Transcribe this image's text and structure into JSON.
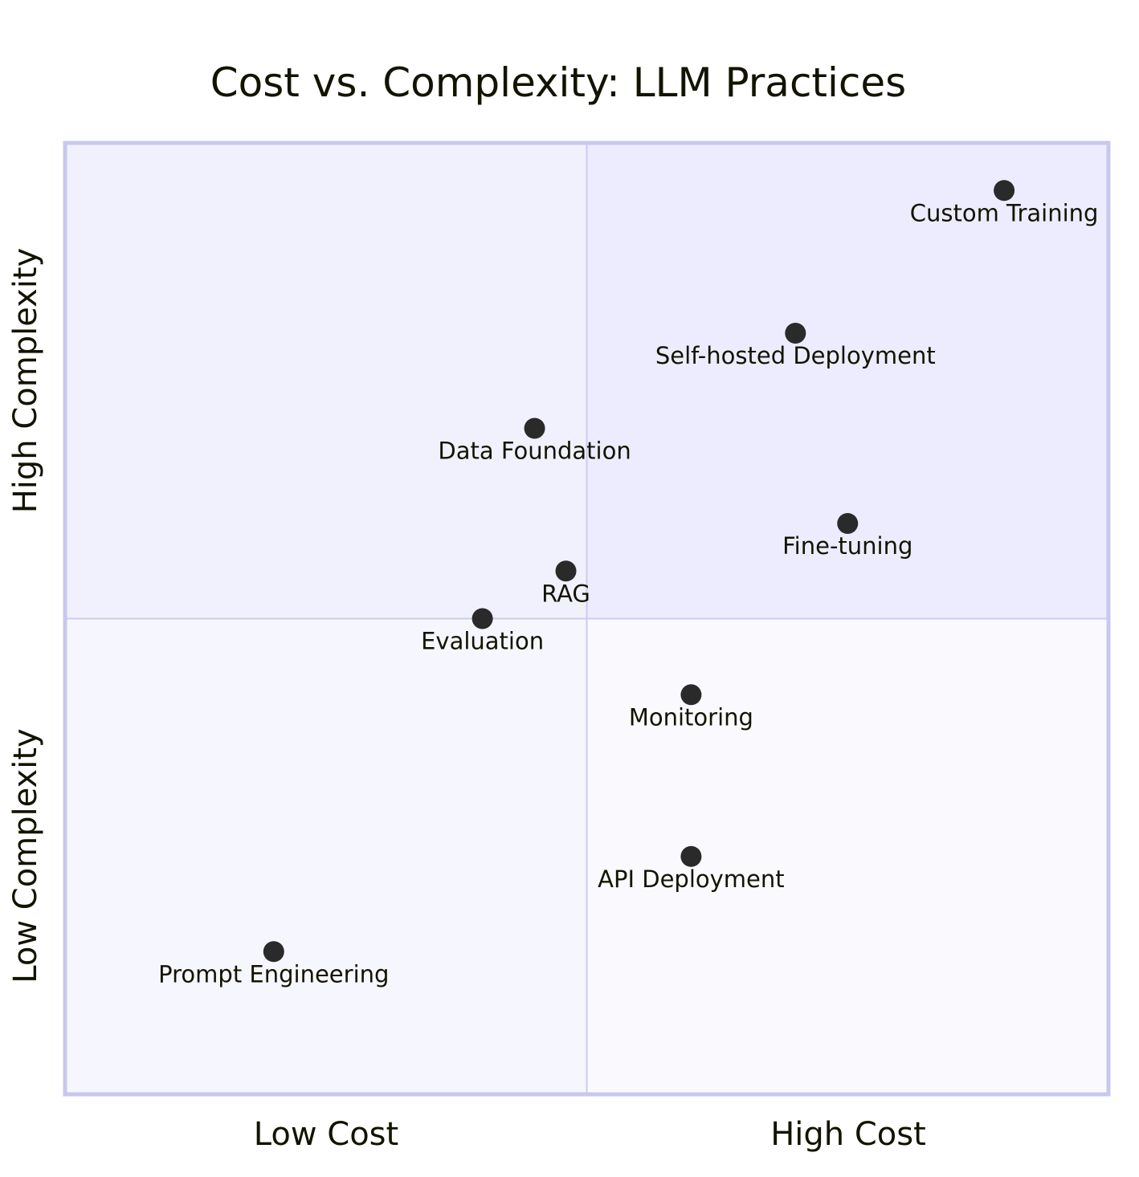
{
  "chart_data": {
    "type": "scatter",
    "subtype": "quadrant",
    "title": "Cost vs. Complexity: LLM Practices",
    "x_axis": {
      "low_label": "Low Cost",
      "high_label": "High Cost",
      "range": [
        0,
        1
      ]
    },
    "y_axis": {
      "low_label": "Low Complexity",
      "high_label": "High Complexity",
      "range": [
        0,
        1
      ]
    },
    "quadrant_colors": {
      "top_right": "#ececfe",
      "top_left": "#f1f1fe",
      "bottom_left": "#f6f6fe",
      "bottom_right": "#fafafe",
      "border": "#c8c8ee",
      "divider": "#cbcbf1",
      "point": "#2a2a2a"
    },
    "points": [
      {
        "name": "Custom Training",
        "x": 0.9,
        "y": 0.95
      },
      {
        "name": "Self-hosted Deployment",
        "x": 0.7,
        "y": 0.8
      },
      {
        "name": "Data Foundation",
        "x": 0.45,
        "y": 0.7
      },
      {
        "name": "Fine-tuning",
        "x": 0.75,
        "y": 0.6
      },
      {
        "name": "RAG",
        "x": 0.48,
        "y": 0.55
      },
      {
        "name": "Evaluation",
        "x": 0.4,
        "y": 0.5
      },
      {
        "name": "Monitoring",
        "x": 0.6,
        "y": 0.42
      },
      {
        "name": "API Deployment",
        "x": 0.6,
        "y": 0.25
      },
      {
        "name": "Prompt Engineering",
        "x": 0.2,
        "y": 0.15
      }
    ]
  }
}
